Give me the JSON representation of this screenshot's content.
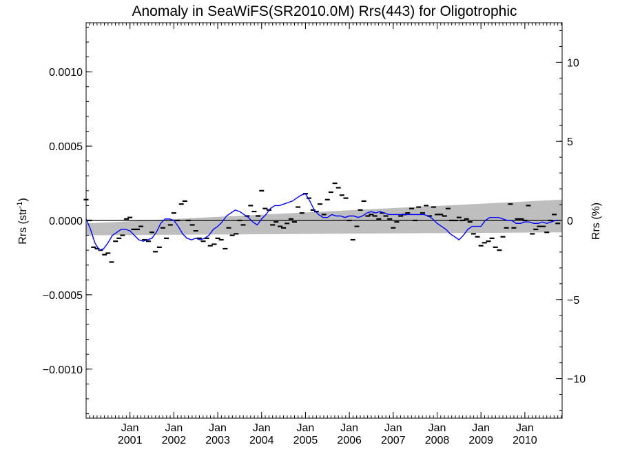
{
  "chart_data": {
    "type": "line",
    "title": "Anomaly in SeaWiFS(SR2010.0M) Rrs(443) for Oligotrophic",
    "ylabel_left": "Rrs (str",
    "ylabel_left_sup": "-1",
    "ylabel_left_close": ")",
    "ylabel_right": "Rrs (%)",
    "xlim": [
      2000.0,
      2010.85
    ],
    "ylim": [
      -0.00133,
      0.00133
    ],
    "y2lim": [
      -12.5,
      12.5
    ],
    "x_ticks": [
      {
        "x": 2001.0,
        "top": "Jan",
        "bottom": "2001"
      },
      {
        "x": 2002.0,
        "top": "Jan",
        "bottom": "2002"
      },
      {
        "x": 2003.0,
        "top": "Jan",
        "bottom": "2003"
      },
      {
        "x": 2004.0,
        "top": "Jan",
        "bottom": "2004"
      },
      {
        "x": 2005.0,
        "top": "Jan",
        "bottom": "2005"
      },
      {
        "x": 2006.0,
        "top": "Jan",
        "bottom": "2006"
      },
      {
        "x": 2007.0,
        "top": "Jan",
        "bottom": "2007"
      },
      {
        "x": 2008.0,
        "top": "Jan",
        "bottom": "2008"
      },
      {
        "x": 2009.0,
        "top": "Jan",
        "bottom": "2009"
      },
      {
        "x": 2010.0,
        "top": "Jan",
        "bottom": "2010"
      }
    ],
    "y_ticks_left": [
      {
        "v": 0.001,
        "label": "0.0010"
      },
      {
        "v": 0.0005,
        "label": "0.0005"
      },
      {
        "v": 0.0,
        "label": "0.0000"
      },
      {
        "v": -0.0005,
        "label": "−0.0005"
      },
      {
        "v": -0.001,
        "label": "−0.0010"
      }
    ],
    "y_ticks_right": [
      {
        "v": 10,
        "label": "10"
      },
      {
        "v": 5,
        "label": "5"
      },
      {
        "v": 0,
        "label": "0"
      },
      {
        "v": -5,
        "label": "−5"
      },
      {
        "v": -10,
        "label": "−10"
      }
    ],
    "grid": false,
    "band": {
      "color": "#bebebe",
      "start": {
        "x": 2000.0,
        "lower": -0.0001,
        "upper": -2e-05
      },
      "end": {
        "x": 2010.85,
        "lower": -8e-05,
        "upper": 0.00014
      }
    },
    "zero_line": {
      "y": 0.0,
      "color": "#000000"
    },
    "monthly_points": {
      "color": "#000000",
      "x": [
        2000.0,
        2000.08,
        2000.17,
        2000.25,
        2000.33,
        2000.42,
        2000.5,
        2000.58,
        2000.67,
        2000.75,
        2000.83,
        2000.92,
        2001.0,
        2001.08,
        2001.17,
        2001.25,
        2001.33,
        2001.42,
        2001.5,
        2001.58,
        2001.67,
        2001.75,
        2001.83,
        2001.92,
        2002.0,
        2002.08,
        2002.17,
        2002.25,
        2002.33,
        2002.42,
        2002.5,
        2002.58,
        2002.67,
        2002.75,
        2002.83,
        2002.92,
        2003.0,
        2003.08,
        2003.17,
        2003.25,
        2003.33,
        2003.42,
        2003.5,
        2003.58,
        2003.67,
        2003.75,
        2003.83,
        2003.92,
        2004.0,
        2004.08,
        2004.17,
        2004.25,
        2004.33,
        2004.42,
        2004.5,
        2004.58,
        2004.67,
        2004.75,
        2004.83,
        2004.92,
        2005.0,
        2005.08,
        2005.17,
        2005.25,
        2005.33,
        2005.42,
        2005.5,
        2005.58,
        2005.67,
        2005.75,
        2005.83,
        2005.92,
        2006.0,
        2006.08,
        2006.17,
        2006.25,
        2006.33,
        2006.42,
        2006.5,
        2006.58,
        2006.67,
        2006.75,
        2006.83,
        2006.92,
        2007.0,
        2007.08,
        2007.17,
        2007.25,
        2007.33,
        2007.42,
        2007.5,
        2007.58,
        2007.67,
        2007.75,
        2007.83,
        2007.92,
        2008.0,
        2008.08,
        2008.17,
        2008.25,
        2008.33,
        2008.42,
        2008.5,
        2008.58,
        2008.67,
        2008.75,
        2008.83,
        2008.92,
        2009.0,
        2009.08,
        2009.17,
        2009.25,
        2009.33,
        2009.42,
        2009.5,
        2009.58,
        2009.67,
        2009.75,
        2009.83,
        2009.92,
        2010.0,
        2010.08,
        2010.17,
        2010.25,
        2010.33,
        2010.42,
        2010.5,
        2010.58,
        2010.67,
        2010.75
      ],
      "y": [
        0.00014,
        0.0,
        -0.00018,
        -0.00019,
        -0.0002,
        -0.00023,
        -0.00022,
        -0.00028,
        -0.00014,
        -0.00012,
        -0.0001,
        1e-05,
        2e-05,
        -6e-05,
        -6e-05,
        -4e-05,
        -0.00013,
        -0.00014,
        -8e-05,
        -0.00021,
        -0.00018,
        -5e-05,
        -0.00012,
        -3e-05,
        5e-05,
        0.0,
        0.00011,
        0.00013,
        0.0,
        -3e-05,
        -7e-05,
        -0.00012,
        -0.00014,
        -0.00012,
        -0.00017,
        -0.00016,
        -0.00012,
        -0.00013,
        -0.00019,
        -5e-05,
        -0.0001,
        -9e-05,
        0.0,
        -3e-05,
        3e-05,
        0.0001,
        6e-05,
        3e-05,
        0.0002,
        8e-05,
        7e-05,
        -3e-05,
        -1e-05,
        -4e-05,
        -5e-05,
        -2e-05,
        1e-05,
        -1e-05,
        9e-05,
        5e-05,
        0.00018,
        0.00015,
        7e-05,
        6e-05,
        0.00011,
        4e-05,
        0.00014,
        0.00019,
        0.00025,
        0.00022,
        0.00017,
        0.00015,
        0.0,
        -0.00013,
        -4e-05,
        7e-05,
        0.00013,
        3e-05,
        4e-05,
        3e-05,
        1e-05,
        5e-05,
        3e-05,
        1e-05,
        -5e-05,
        -1e-05,
        3e-05,
        4e-05,
        5e-05,
        8e-05,
        0.0,
        9e-05,
        5e-05,
        0.0001,
        3e-05,
        9e-05,
        4e-05,
        4e-05,
        3e-05,
        8e-05,
        0.0,
        0.0,
        2e-05,
        0.0,
        1e-05,
        -1e-05,
        -9e-05,
        -0.00011,
        -0.00017,
        -0.00015,
        -0.00014,
        -0.00012,
        -0.00018,
        -0.0002,
        -0.00011,
        -5e-05,
        0.00011,
        -5e-05,
        1e-05,
        1e-05,
        0.0,
        0.0001,
        -9e-05,
        -6e-05,
        -4e-05,
        -4e-05,
        -8e-05,
        0.0,
        4e-05,
        -2e-05
      ]
    },
    "series": [
      {
        "color": "#0000ff",
        "x": [
          2000.0,
          2000.1,
          2000.2,
          2000.3,
          2000.4,
          2000.5,
          2000.6,
          2000.7,
          2000.8,
          2000.9,
          2001.0,
          2001.1,
          2001.2,
          2001.3,
          2001.4,
          2001.5,
          2001.6,
          2001.7,
          2001.8,
          2001.9,
          2002.0,
          2002.1,
          2002.2,
          2002.3,
          2002.4,
          2002.5,
          2002.6,
          2002.7,
          2002.8,
          2002.9,
          2003.0,
          2003.1,
          2003.2,
          2003.3,
          2003.4,
          2003.5,
          2003.6,
          2003.7,
          2003.8,
          2003.9,
          2004.0,
          2004.1,
          2004.2,
          2004.3,
          2004.4,
          2004.5,
          2004.6,
          2004.7,
          2004.8,
          2004.9,
          2005.0,
          2005.1,
          2005.2,
          2005.3,
          2005.4,
          2005.5,
          2005.6,
          2005.7,
          2005.8,
          2005.9,
          2006.0,
          2006.1,
          2006.2,
          2006.3,
          2006.4,
          2006.5,
          2006.6,
          2006.7,
          2006.8,
          2006.9,
          2007.0,
          2007.1,
          2007.2,
          2007.3,
          2007.4,
          2007.5,
          2007.6,
          2007.7,
          2007.8,
          2007.9,
          2008.0,
          2008.1,
          2008.2,
          2008.3,
          2008.4,
          2008.5,
          2008.6,
          2008.7,
          2008.8,
          2008.9,
          2009.0,
          2009.1,
          2009.2,
          2009.3,
          2009.4,
          2009.5,
          2009.6,
          2009.7,
          2009.8,
          2009.9,
          2010.0,
          2010.1,
          2010.2,
          2010.3,
          2010.4,
          2010.5,
          2010.6,
          2010.7,
          2010.8
        ],
        "y": [
          1e-05,
          -6e-05,
          -0.00015,
          -0.0002,
          -0.00019,
          -0.00015,
          -0.0001,
          -8e-05,
          -6e-05,
          -6e-05,
          -7e-05,
          -0.0001,
          -0.00013,
          -0.00014,
          -0.00013,
          -0.00012,
          -8e-05,
          -2e-05,
          1e-05,
          1e-05,
          0.0,
          -4e-05,
          -9e-05,
          -0.00012,
          -0.00013,
          -0.00012,
          -0.00013,
          -0.00012,
          -0.0001,
          -6e-05,
          -4e-05,
          -1e-05,
          3e-05,
          5e-05,
          7e-05,
          6e-05,
          4e-05,
          2e-05,
          -1e-05,
          -3e-05,
          1e-05,
          4e-05,
          8e-05,
          0.0001,
          0.0001,
          0.00011,
          0.00012,
          0.00013,
          0.00015,
          0.00017,
          0.00018,
          0.00013,
          7e-05,
          4e-05,
          2e-05,
          2e-05,
          4e-05,
          3e-05,
          3e-05,
          2e-05,
          3e-05,
          3e-05,
          2e-05,
          3e-05,
          5e-05,
          6e-05,
          5e-05,
          6e-05,
          5e-05,
          4e-05,
          4e-05,
          4e-05,
          4e-05,
          4e-05,
          4e-05,
          4e-05,
          4e-05,
          4e-05,
          3e-05,
          1e-05,
          -2e-05,
          -4e-05,
          -6e-05,
          -9e-05,
          -0.00011,
          -0.00013,
          -0.0001,
          -6e-05,
          -4e-05,
          -4e-05,
          -4e-05,
          0.0,
          2e-05,
          2e-05,
          2e-05,
          1e-05,
          0.0,
          0.0,
          -2e-05,
          -2e-05,
          -1e-05,
          -1e-05,
          -2e-05,
          -2e-05,
          -1e-05,
          -2e-05,
          -1e-05,
          0.0,
          0.0
        ]
      }
    ]
  }
}
